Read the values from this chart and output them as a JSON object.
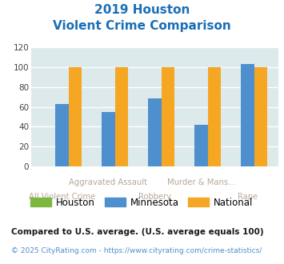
{
  "title_line1": "2019 Houston",
  "title_line2": "Violent Crime Comparison",
  "groups": [
    "All Violent Crime",
    "Aggravated Assault",
    "Robbery",
    "Murder & Mans...",
    "Rape"
  ],
  "xtick_top": [
    "",
    "Aggravated Assault",
    "",
    "Murder & Mans...",
    ""
  ],
  "xtick_bottom": [
    "All Violent Crime",
    "",
    "Robbery",
    "",
    "Rape"
  ],
  "houston": [
    0,
    0,
    0,
    0,
    0
  ],
  "minnesota": [
    63,
    55,
    69,
    42,
    103
  ],
  "national": [
    100,
    100,
    100,
    100,
    100
  ],
  "color_houston": "#7cb83e",
  "color_minnesota": "#4d90cd",
  "color_national": "#f5a623",
  "color_title": "#1a6eb5",
  "color_xlabel": "#b8a898",
  "bg_chart": "#ddeaec",
  "bg_figure": "#ffffff",
  "ylim": [
    0,
    120
  ],
  "yticks": [
    0,
    20,
    40,
    60,
    80,
    100,
    120
  ],
  "footnote1": "Compared to U.S. average. (U.S. average equals 100)",
  "footnote2": "© 2025 CityRating.com - https://www.cityrating.com/crime-statistics/",
  "color_footnote1": "#1a1a1a",
  "color_footnote2": "#4d8fcc",
  "legend_labels": [
    "Houston",
    "Minnesota",
    "National"
  ]
}
